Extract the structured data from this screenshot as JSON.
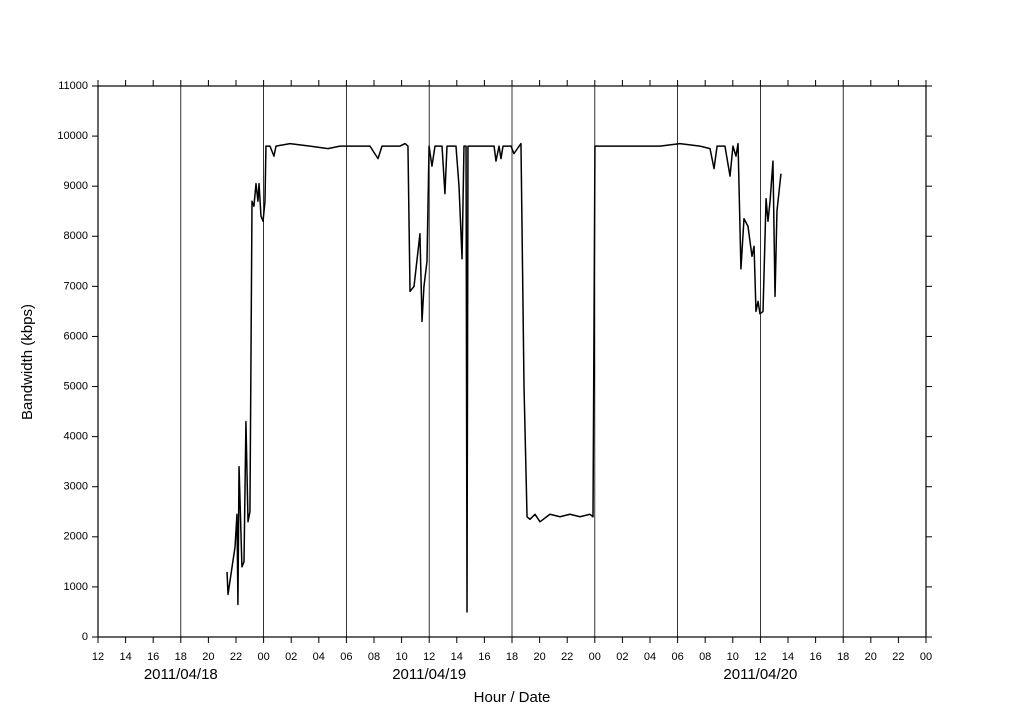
{
  "chart_data": {
    "type": "line",
    "xlabel": "Hour / Date",
    "ylabel": "Bandwidth (kbps)",
    "xlim": [
      0,
      60
    ],
    "ylim": [
      0,
      11000
    ],
    "xticks": [
      {
        "value": 0,
        "label": "12"
      },
      {
        "value": 2,
        "label": "14"
      },
      {
        "value": 4,
        "label": "16"
      },
      {
        "value": 6,
        "label": "18"
      },
      {
        "value": 8,
        "label": "20"
      },
      {
        "value": 10,
        "label": "22"
      },
      {
        "value": 12,
        "label": "00"
      },
      {
        "value": 14,
        "label": "02"
      },
      {
        "value": 16,
        "label": "04"
      },
      {
        "value": 18,
        "label": "06"
      },
      {
        "value": 20,
        "label": "08"
      },
      {
        "value": 22,
        "label": "10"
      },
      {
        "value": 24,
        "label": "12"
      },
      {
        "value": 26,
        "label": "14"
      },
      {
        "value": 28,
        "label": "16"
      },
      {
        "value": 30,
        "label": "18"
      },
      {
        "value": 32,
        "label": "20"
      },
      {
        "value": 34,
        "label": "22"
      },
      {
        "value": 36,
        "label": "00"
      },
      {
        "value": 38,
        "label": "02"
      },
      {
        "value": 40,
        "label": "04"
      },
      {
        "value": 42,
        "label": "06"
      },
      {
        "value": 44,
        "label": "08"
      },
      {
        "value": 46,
        "label": "10"
      },
      {
        "value": 48,
        "label": "12"
      },
      {
        "value": 50,
        "label": "14"
      },
      {
        "value": 52,
        "label": "16"
      },
      {
        "value": 54,
        "label": "18"
      },
      {
        "value": 56,
        "label": "20"
      },
      {
        "value": 58,
        "label": "22"
      },
      {
        "value": 60,
        "label": "00"
      }
    ],
    "yticks": [
      0,
      1000,
      2000,
      3000,
      4000,
      5000,
      6000,
      7000,
      8000,
      9000,
      10000,
      11000
    ],
    "date_labels": [
      {
        "value": 6,
        "label": "2011/04/18"
      },
      {
        "value": 24,
        "label": "2011/04/19"
      },
      {
        "value": 48,
        "label": "2011/04/20"
      }
    ],
    "grid_every": 6,
    "color": "#000000",
    "x": [
      9.35,
      9.42,
      9.93,
      10.07,
      10.14,
      10.22,
      10.43,
      10.58,
      10.72,
      10.87,
      11.01,
      11.16,
      11.3,
      11.45,
      11.59,
      11.67,
      11.81,
      11.96,
      12.1,
      12.17,
      12.46,
      12.75,
      12.9,
      13.91,
      15.36,
      16.67,
      17.54,
      18.62,
      19.71,
      20.29,
      20.58,
      21.88,
      22.25,
      22.46,
      22.61,
      22.9,
      23.33,
      23.48,
      23.62,
      23.84,
      23.99,
      24.2,
      24.42,
      24.93,
      25.14,
      25.29,
      25.94,
      26.16,
      26.38,
      26.52,
      26.67,
      26.74,
      26.81,
      26.96,
      27.68,
      28.7,
      28.84,
      29.06,
      29.2,
      29.35,
      29.93,
      30.14,
      30.65,
      30.87,
      31.09,
      31.3,
      31.67,
      32.03,
      32.75,
      33.48,
      34.2,
      34.93,
      35.65,
      35.87,
      36.01,
      36.38,
      37.1,
      38.55,
      40.72,
      42.17,
      43.62,
      44.35,
      44.64,
      44.86,
      45.43,
      45.8,
      46.01,
      46.23,
      46.38,
      46.59,
      46.81,
      47.1,
      47.39,
      47.54,
      47.68,
      47.83,
      47.97,
      48.19,
      48.41,
      48.55,
      48.7,
      48.91,
      49.06,
      49.2,
      49.49
    ],
    "values": [
      1300,
      850,
      1800,
      2450,
      650,
      3400,
      1400,
      1500,
      4300,
      2300,
      2500,
      8700,
      8600,
      9050,
      8700,
      9050,
      8400,
      8300,
      8700,
      9800,
      9800,
      9600,
      9800,
      9850,
      9800,
      9750,
      9800,
      9800,
      9800,
      9550,
      9800,
      9800,
      9850,
      9800,
      6900,
      7000,
      8050,
      6300,
      7000,
      7500,
      9800,
      9400,
      9800,
      9800,
      8850,
      9800,
      9800,
      9000,
      7550,
      9800,
      9800,
      500,
      9800,
      9800,
      9800,
      9800,
      9500,
      9800,
      9550,
      9800,
      9800,
      9650,
      9850,
      5000,
      2400,
      2350,
      2450,
      2300,
      2450,
      2400,
      2450,
      2400,
      2450,
      2400,
      9800,
      9800,
      9800,
      9800,
      9800,
      9850,
      9800,
      9750,
      9350,
      9800,
      9800,
      9200,
      9800,
      9600,
      9850,
      7350,
      8350,
      8200,
      7600,
      7800,
      6500,
      6700,
      6450,
      6500,
      8750,
      8300,
      8700,
      9500,
      6800,
      8500,
      9250
    ]
  }
}
